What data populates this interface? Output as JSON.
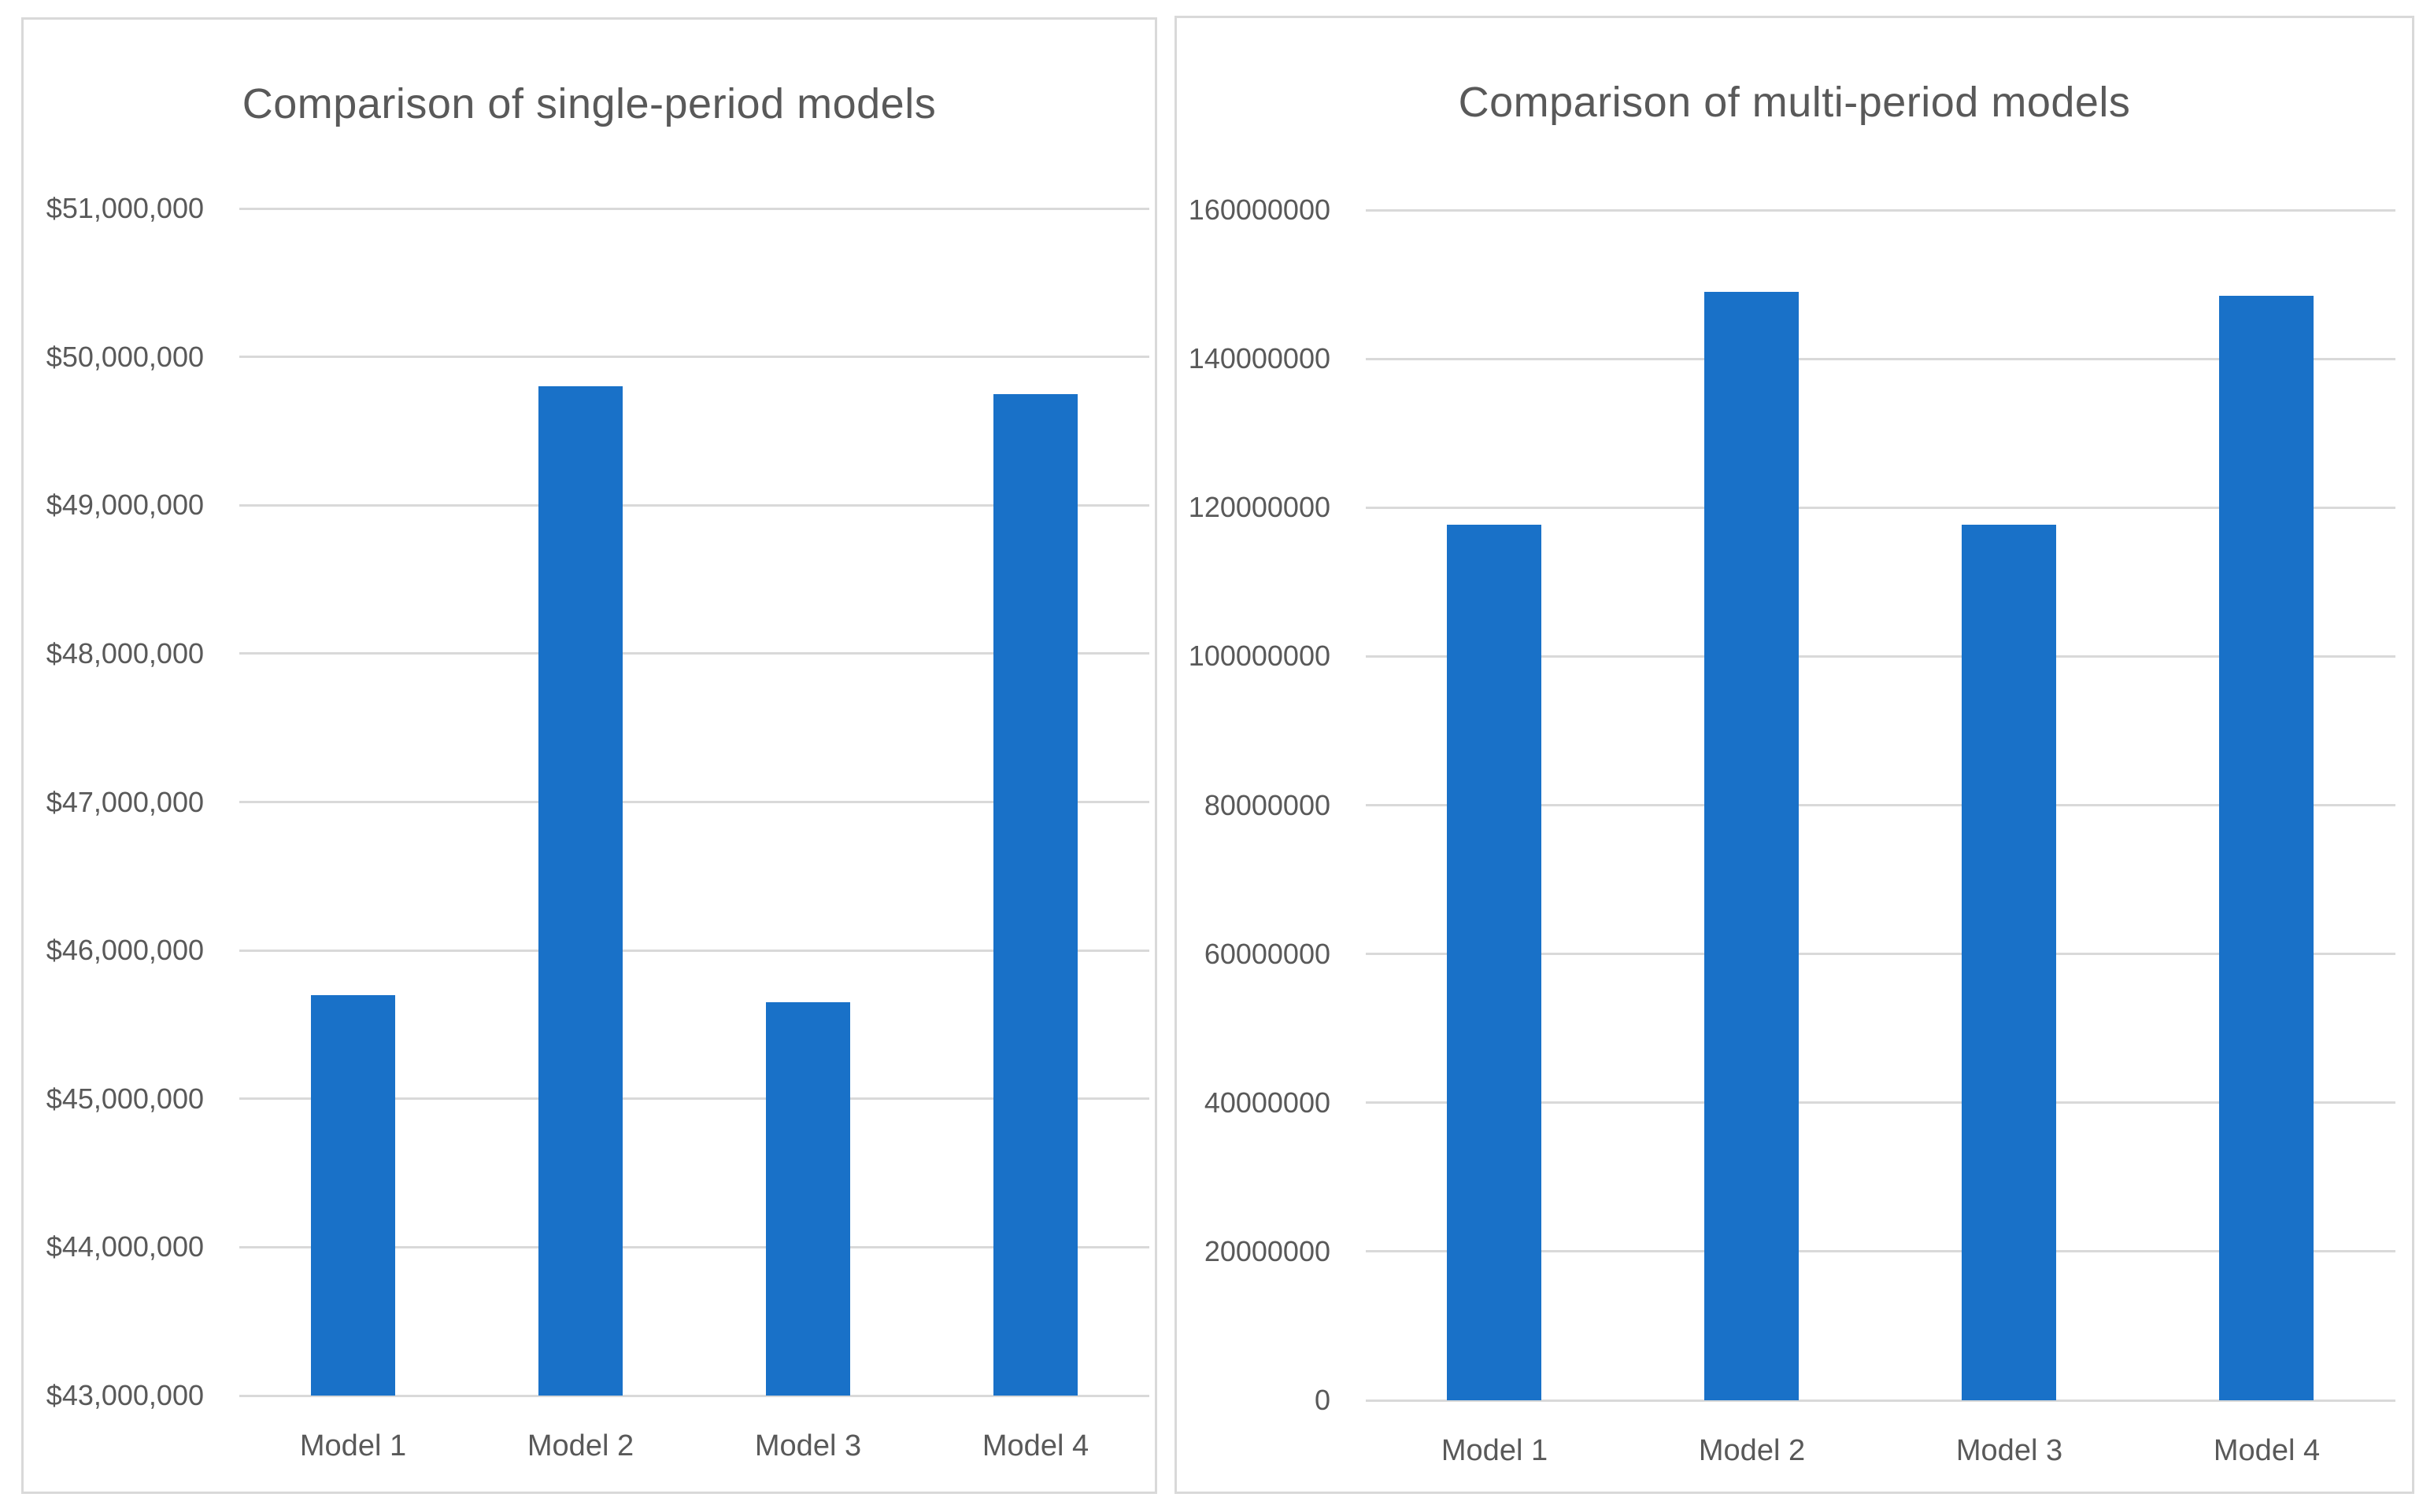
{
  "colors": {
    "bar": "#1971C8",
    "grid": "#D9D9D9",
    "text": "#595959",
    "border": "#D9D9D9",
    "background": "#FFFFFF"
  },
  "chart_data": [
    {
      "type": "bar",
      "title": "Comparison of single-period models",
      "categories": [
        "Model 1",
        "Model 2",
        "Model 3",
        "Model 4"
      ],
      "values": [
        45700000,
        49800000,
        45650000,
        49750000
      ],
      "ylabel": "",
      "xlabel": "",
      "ylim": [
        43000000,
        51000000
      ],
      "ytick_step": 1000000,
      "ytick_format": "usd_commas",
      "ytick_labels": [
        "$51,000,000",
        "$50,000,000",
        "$49,000,000",
        "$48,000,000",
        "$47,000,000",
        "$46,000,000",
        "$45,000,000",
        "$44,000,000",
        "$43,000,000"
      ],
      "grid": true,
      "legend": "none"
    },
    {
      "type": "bar",
      "title": "Comparison of multi-period models",
      "categories": [
        "Model 1",
        "Model 2",
        "Model 3",
        "Model 4"
      ],
      "values": [
        117700000,
        149000000,
        117700000,
        148500000
      ],
      "ylabel": "",
      "xlabel": "",
      "ylim": [
        0,
        160000000
      ],
      "ytick_step": 20000000,
      "ytick_format": "plain",
      "ytick_labels": [
        "160000000",
        "140000000",
        "120000000",
        "100000000",
        "80000000",
        "60000000",
        "40000000",
        "20000000",
        "0"
      ],
      "grid": true,
      "legend": "none"
    }
  ]
}
